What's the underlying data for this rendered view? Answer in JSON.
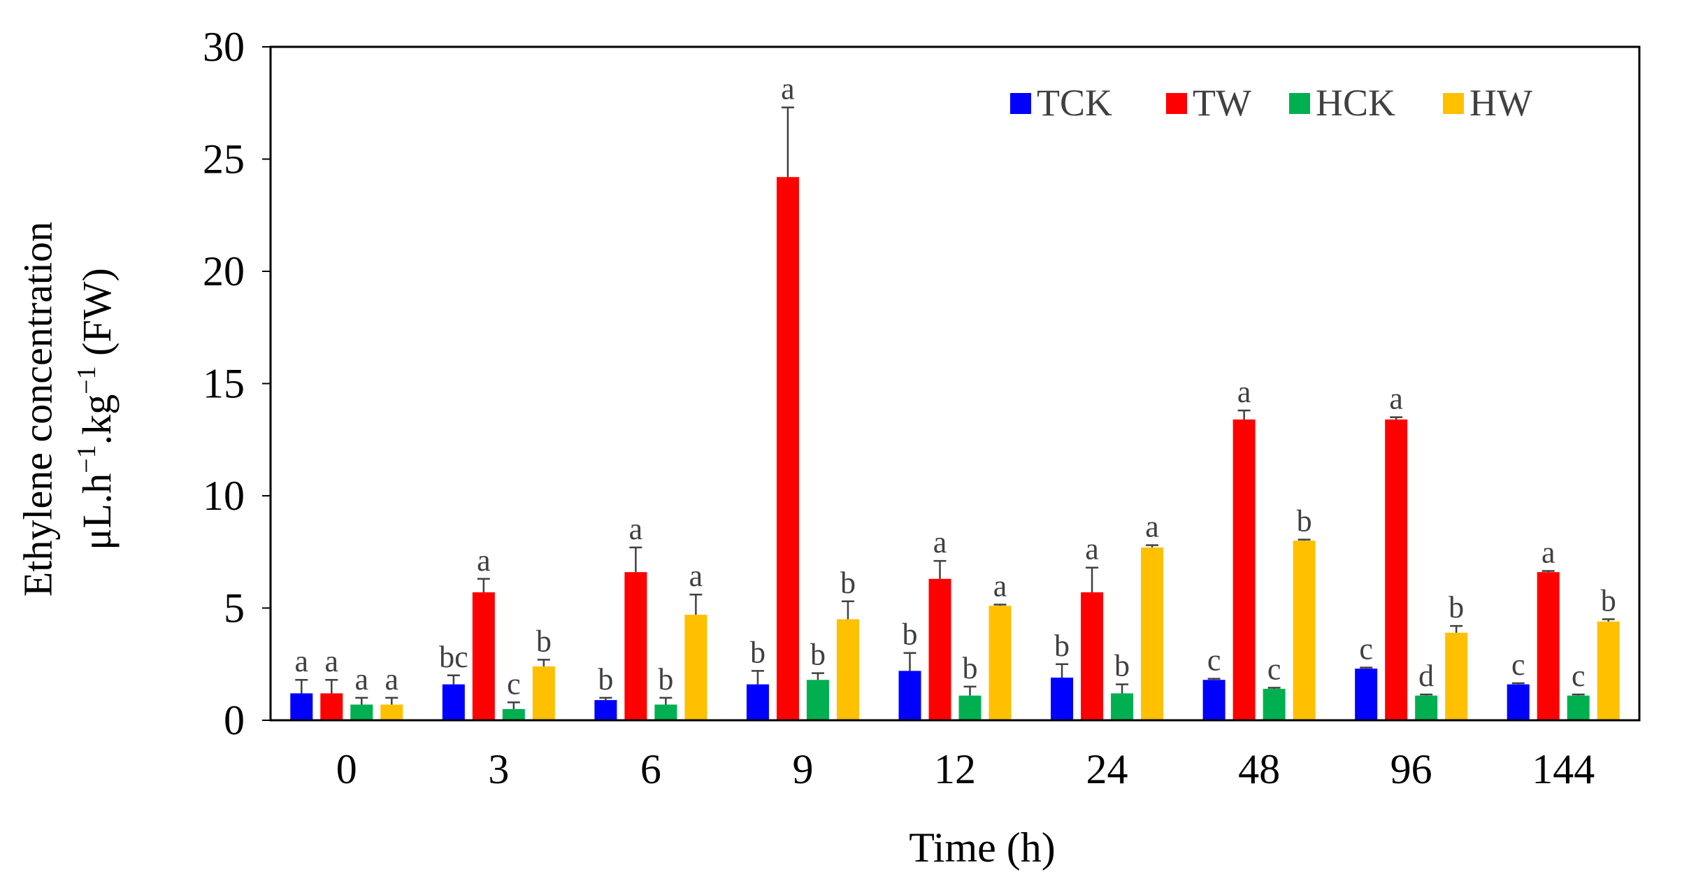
{
  "chart_data": {
    "type": "bar",
    "title": "",
    "xlabel": "Time (h)",
    "ylabel_line1": "Ethylene concentration",
    "ylabel_line2": {
      "base1": "μL.h",
      "sup1": "−1",
      "base2": ".kg",
      "sup2": "−1",
      "tail": " (FW)"
    },
    "ylim": [
      0,
      30
    ],
    "yticks": [
      "0",
      "5",
      "10",
      "15",
      "20",
      "25",
      "30"
    ],
    "categories": [
      "0",
      "3",
      "6",
      "9",
      "12",
      "24",
      "48",
      "96",
      "144"
    ],
    "legend_position": "top-right",
    "series": [
      {
        "name": "TCK",
        "color": "#0000FF",
        "values": [
          1.2,
          1.6,
          0.9,
          1.6,
          2.2,
          1.9,
          1.8,
          2.3,
          1.6
        ],
        "errors": [
          0.6,
          0.4,
          0.1,
          0.6,
          0.8,
          0.6,
          0.05,
          0.05,
          0.05
        ],
        "labels": [
          "a",
          "bc",
          "b",
          "b",
          "b",
          "b",
          "c",
          "c",
          "c"
        ]
      },
      {
        "name": "TW",
        "color": "#FF0000",
        "values": [
          1.2,
          5.7,
          6.6,
          24.2,
          6.3,
          5.7,
          13.4,
          13.4,
          6.6
        ],
        "errors": [
          0.6,
          0.6,
          1.1,
          3.1,
          0.8,
          1.1,
          0.4,
          0.1,
          0.05
        ],
        "labels": [
          "a",
          "a",
          "a",
          "a",
          "a",
          "a",
          "a",
          "a",
          "a"
        ]
      },
      {
        "name": "HCK",
        "color": "#00B050",
        "values": [
          0.7,
          0.5,
          0.7,
          1.8,
          1.1,
          1.2,
          1.4,
          1.1,
          1.1
        ],
        "errors": [
          0.3,
          0.3,
          0.3,
          0.3,
          0.4,
          0.4,
          0.05,
          0.05,
          0.05
        ],
        "labels": [
          "a",
          "c",
          "b",
          "b",
          "b",
          "b",
          "c",
          "d",
          "c"
        ]
      },
      {
        "name": "HW",
        "color": "#FFC000",
        "values": [
          0.7,
          2.4,
          4.7,
          4.5,
          5.1,
          7.7,
          8.0,
          3.9,
          4.4
        ],
        "errors": [
          0.3,
          0.3,
          0.9,
          0.8,
          0.05,
          0.1,
          0.05,
          0.3,
          0.1
        ],
        "labels": [
          "a",
          "b",
          "a",
          "b",
          "a",
          "a",
          "b",
          "b",
          "b"
        ]
      }
    ]
  }
}
